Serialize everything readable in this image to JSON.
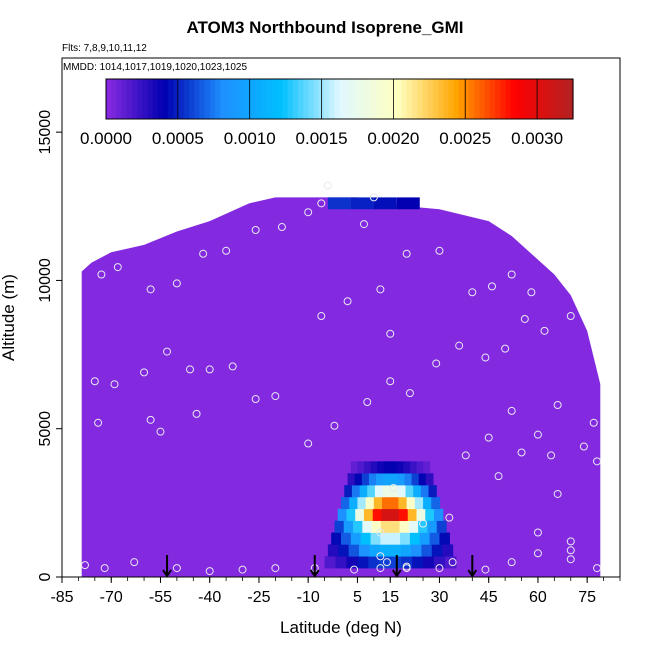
{
  "chart_data": {
    "type": "heatmap",
    "title": "ATOM3 Northbound Isoprene_GMI",
    "notes": [
      "Flts: 7,8,9,10,11,12",
      "MMDD: 1014,1017,1019,1020,1023,1025"
    ],
    "xlabel": "Latitude (deg N)",
    "ylabel": "Altitude (m)",
    "xlim": [
      -85,
      85
    ],
    "ylim": [
      0,
      17500
    ],
    "xticks": [
      "-85",
      "-70",
      "-55",
      "-40",
      "-25",
      "-10",
      "5",
      "15",
      "30",
      "45",
      "60",
      "75"
    ],
    "yticks": [
      "0",
      "5000",
      "10000",
      "15000"
    ],
    "colorbar": {
      "placement": "top",
      "range": [
        0,
        0.00325
      ],
      "ticks": [
        "0.0000",
        "0.0005",
        "0.0010",
        "0.0015",
        "0.0020",
        "0.0025",
        "0.0030"
      ],
      "colors": [
        "#8a2be2",
        "#0000b0",
        "#1e90ff",
        "#00bfff",
        "#e0f8ff",
        "#ffffc0",
        "#ffa500",
        "#ff0000",
        "#b22222"
      ]
    },
    "background_value": 2e-05,
    "envelope": [
      [
        -79,
        0,
        10300
      ],
      [
        -76,
        0,
        10600
      ],
      [
        -70,
        0,
        10950
      ],
      [
        -60,
        0,
        11200
      ],
      [
        -50,
        0,
        11650
      ],
      [
        -40,
        0,
        12000
      ],
      [
        -28,
        0,
        12600
      ],
      [
        -20,
        0,
        12800
      ],
      [
        -8,
        0,
        12800
      ],
      [
        5,
        0,
        12800
      ],
      [
        20,
        0,
        12500
      ],
      [
        30,
        0,
        12400
      ],
      [
        45,
        0,
        12000
      ],
      [
        52,
        0,
        11500
      ],
      [
        58,
        0,
        10900
      ],
      [
        65,
        0,
        10200
      ],
      [
        70,
        0,
        9500
      ],
      [
        75,
        0,
        8300
      ],
      [
        79,
        0,
        6500
      ]
    ],
    "hotspot": {
      "lat_center": 15,
      "lat_half_width": 20,
      "alt_levels": [
        500,
        900,
        1300,
        1700,
        2100,
        2500,
        2900,
        3300,
        3700
      ],
      "values": [
        0.0006,
        0.0011,
        0.0016,
        0.0022,
        0.0031,
        0.0026,
        0.0018,
        0.001,
        0.0004
      ]
    },
    "top_band": {
      "lat_range": [
        -4,
        24
      ],
      "alt_range": [
        12400,
        12800
      ],
      "values": [
        0.00055,
        0.0005,
        0.00045,
        0.0004
      ]
    },
    "points": [
      [
        -78,
        400
      ],
      [
        -72,
        300
      ],
      [
        -63,
        500
      ],
      [
        -50,
        300
      ],
      [
        -40,
        200
      ],
      [
        -30,
        250
      ],
      [
        -20,
        300
      ],
      [
        -8,
        300
      ],
      [
        4,
        250
      ],
      [
        12,
        300
      ],
      [
        20,
        350
      ],
      [
        30,
        300
      ],
      [
        44,
        250
      ],
      [
        52,
        500
      ],
      [
        60,
        800
      ],
      [
        70,
        900
      ],
      [
        78,
        300
      ],
      [
        -75,
        6600
      ],
      [
        -69,
        6500
      ],
      [
        -60,
        6900
      ],
      [
        -53,
        7600
      ],
      [
        -46,
        7000
      ],
      [
        -40,
        7000
      ],
      [
        -33,
        7100
      ],
      [
        -26,
        6000
      ],
      [
        -20,
        6100
      ],
      [
        -10,
        4500
      ],
      [
        -2,
        5100
      ],
      [
        8,
        5900
      ],
      [
        15,
        6600
      ],
      [
        21,
        6200
      ],
      [
        29,
        7200
      ],
      [
        36,
        7800
      ],
      [
        44,
        7400
      ],
      [
        50,
        7700
      ],
      [
        56,
        8700
      ],
      [
        62,
        8300
      ],
      [
        70,
        8800
      ],
      [
        -73,
        10200
      ],
      [
        -68,
        10450
      ],
      [
        -58,
        9700
      ],
      [
        -50,
        9900
      ],
      [
        -42,
        10900
      ],
      [
        -35,
        11000
      ],
      [
        -26,
        11700
      ],
      [
        -18,
        11800
      ],
      [
        -10,
        12300
      ],
      [
        -6,
        8800
      ],
      [
        2,
        9300
      ],
      [
        7,
        11900
      ],
      [
        12,
        9700
      ],
      [
        20,
        10900
      ],
      [
        30,
        11000
      ],
      [
        40,
        9600
      ],
      [
        46,
        9800
      ],
      [
        52,
        10200
      ],
      [
        58,
        9600
      ],
      [
        -4,
        13200
      ],
      [
        -6,
        12600
      ],
      [
        10,
        12800
      ],
      [
        15,
        8200
      ],
      [
        16,
        3000
      ],
      [
        12,
        1500
      ],
      [
        12,
        700
      ],
      [
        14,
        500
      ],
      [
        20,
        300
      ],
      [
        34,
        500
      ],
      [
        38,
        4100
      ],
      [
        45,
        4700
      ],
      [
        48,
        3400
      ],
      [
        52,
        5600
      ],
      [
        55,
        4200
      ],
      [
        60,
        4800
      ],
      [
        64,
        4100
      ],
      [
        66,
        5800
      ],
      [
        70,
        1200
      ],
      [
        74,
        4400
      ],
      [
        77,
        5200
      ],
      [
        78,
        3900
      ],
      [
        -44,
        5500
      ],
      [
        -58,
        5300
      ],
      [
        -74,
        5200
      ],
      [
        -55,
        4900
      ],
      [
        33,
        2000
      ],
      [
        25,
        1800
      ],
      [
        60,
        1500
      ],
      [
        66,
        2800
      ],
      [
        70,
        600
      ]
    ],
    "arrows": [
      -53,
      -8,
      17,
      40
    ]
  }
}
